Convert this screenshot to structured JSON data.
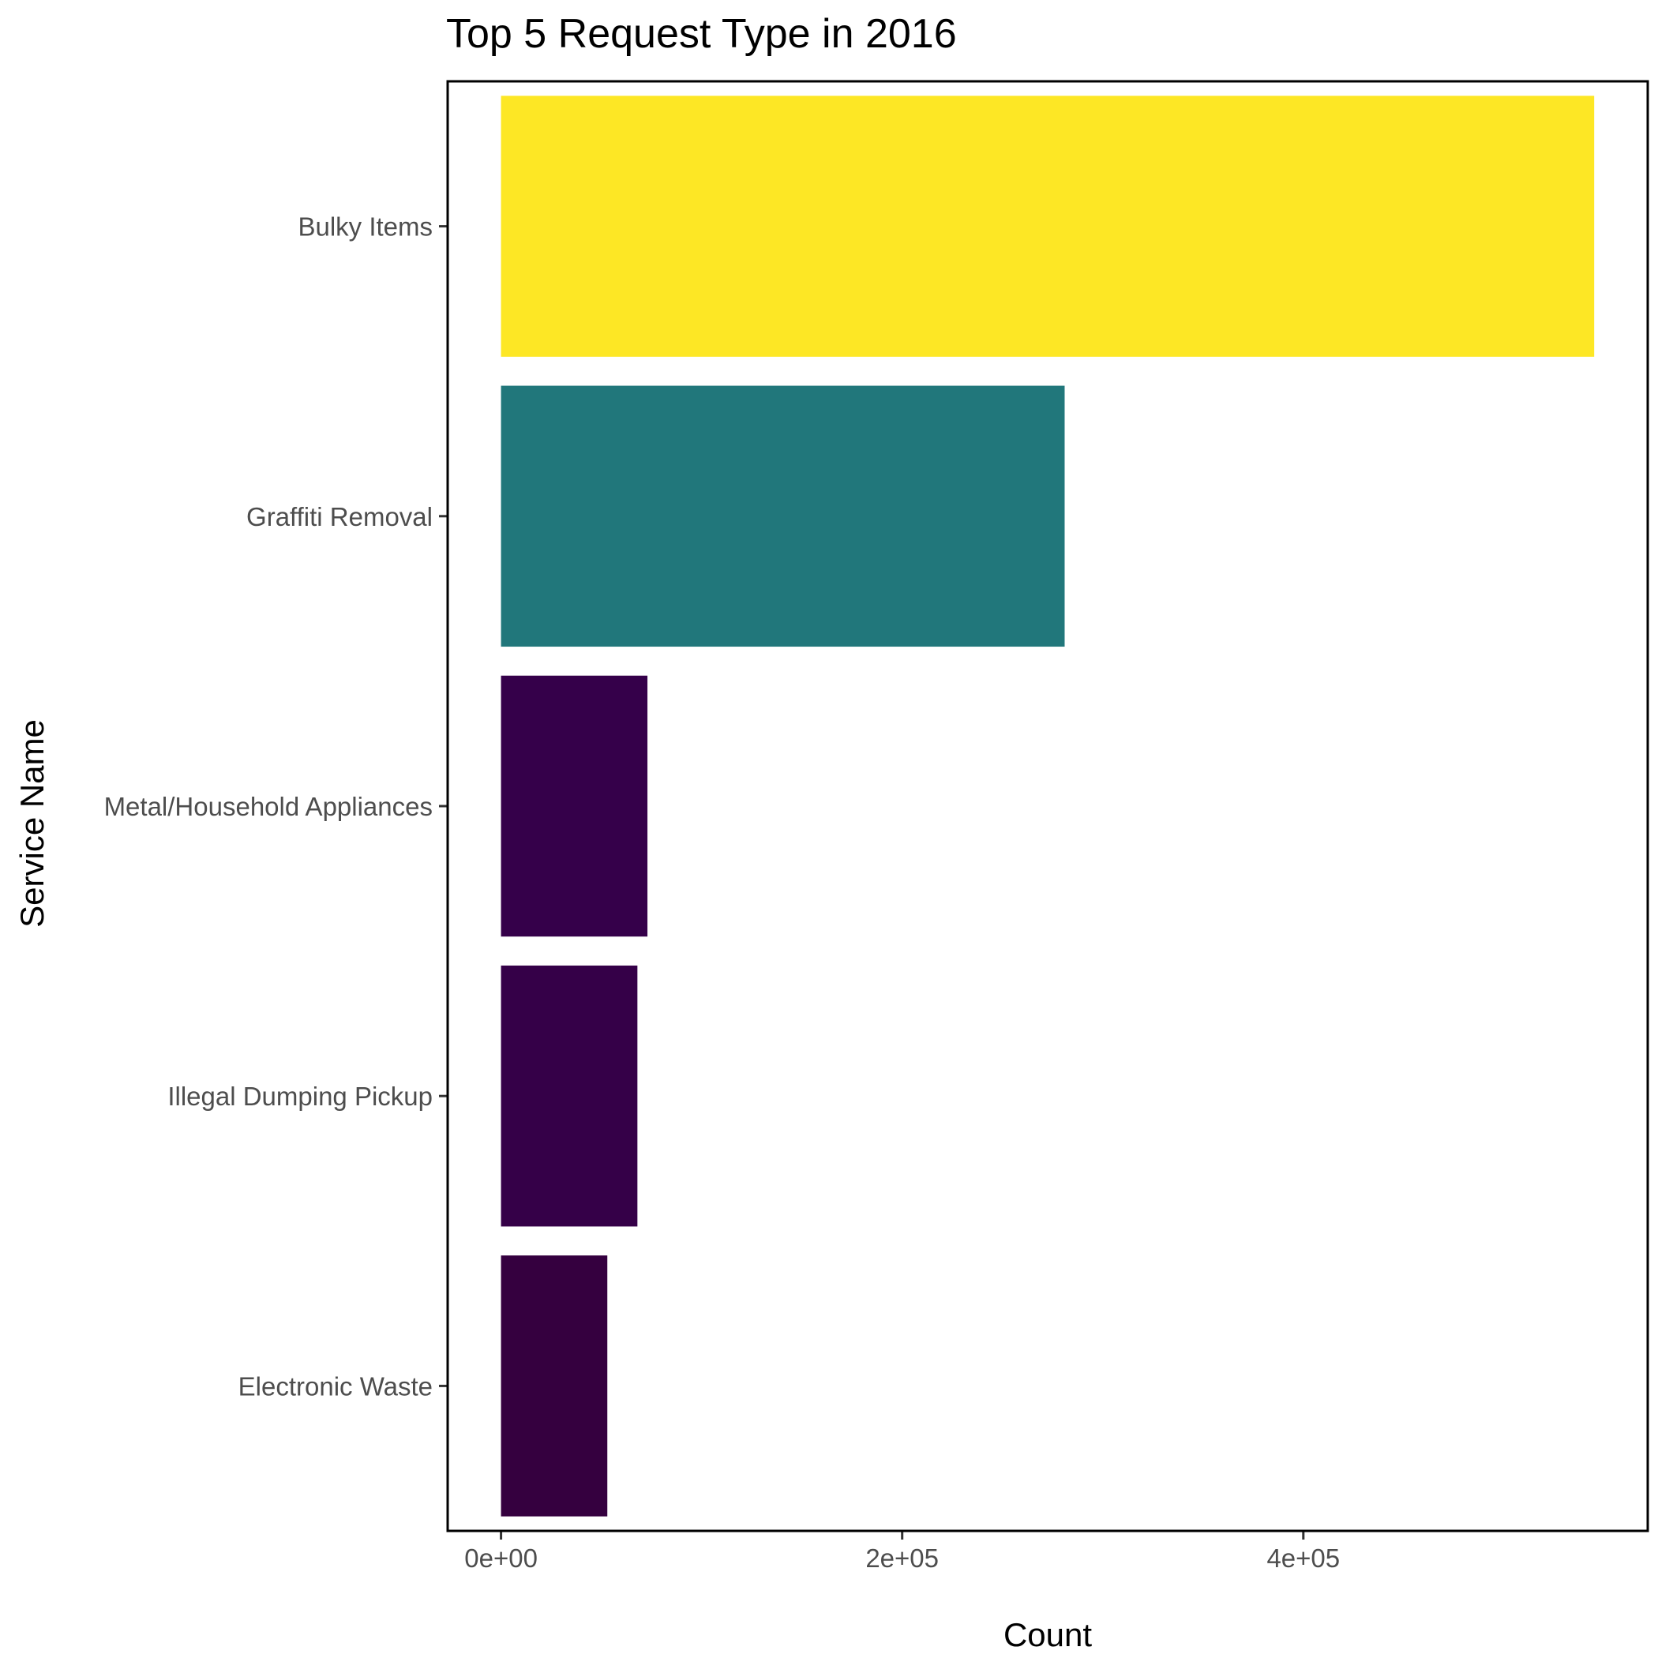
{
  "chart_data": {
    "type": "bar",
    "orientation": "horizontal",
    "title": "Top 5 Request Type in 2016",
    "xlabel": "Count",
    "ylabel": "Service Name",
    "categories": [
      "Bulky Items",
      "Graffiti Removal",
      "Metal/Household Appliances",
      "Illegal Dumping Pickup",
      "Electronic Waste"
    ],
    "values": [
      545000,
      281000,
      73000,
      68000,
      53000
    ],
    "colors": [
      "#FDE725",
      "#21777B",
      "#35004A",
      "#350048",
      "#35003F"
    ],
    "xlim": [
      -26600,
      571700
    ],
    "x_ticks": [
      0,
      200000,
      400000
    ],
    "x_tick_labels": [
      "0e+00",
      "2e+05",
      "4e+05"
    ],
    "grid": false,
    "legend": "none"
  }
}
